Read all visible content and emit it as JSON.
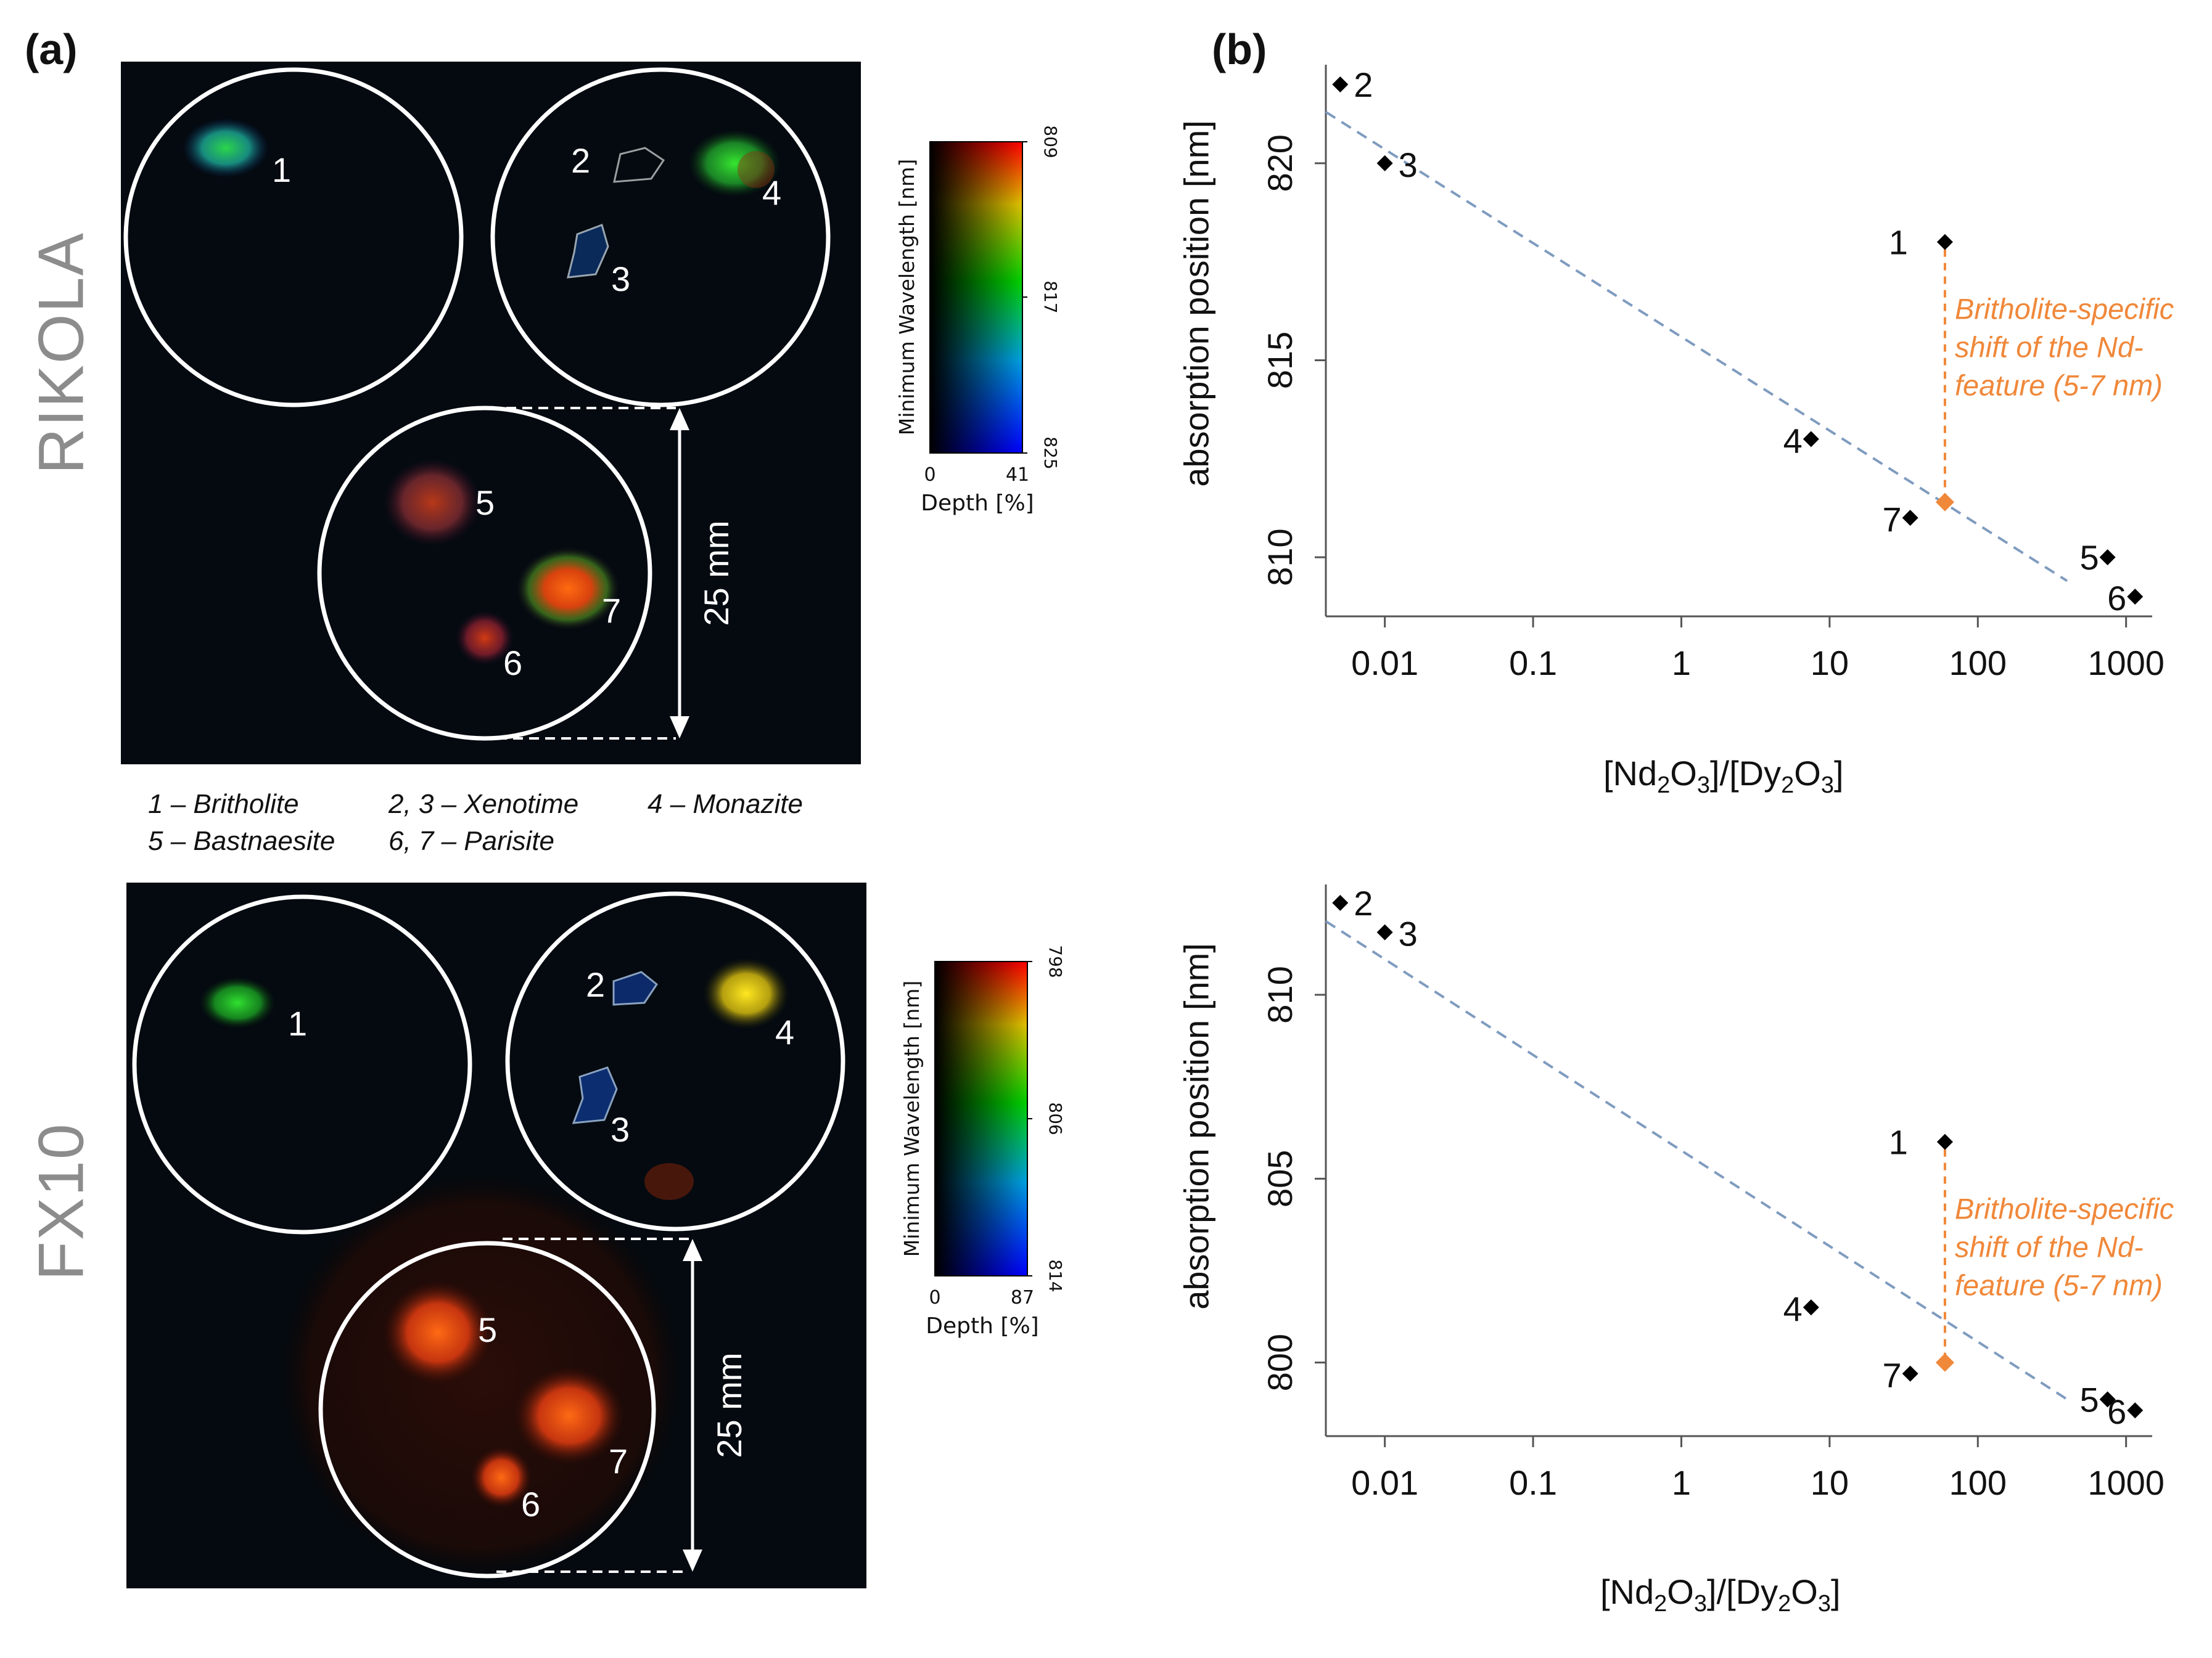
{
  "panels": {
    "a_label": "(a)",
    "b_label": "(b)"
  },
  "sensors": [
    {
      "name": "RIKOLA",
      "scale_text": "25 mm",
      "colorbar": {
        "title": "Minimum Wavelength [nm]",
        "top_tick": "809",
        "mid_tick": "817",
        "bottom_tick": "825",
        "depth_label": "Depth [%]",
        "depth_min": "0",
        "depth_max": "41"
      },
      "circle_labels": [
        "1",
        "2",
        "3",
        "4",
        "5",
        "6",
        "7"
      ]
    },
    {
      "name": "FX10",
      "scale_text": "25 mm",
      "colorbar": {
        "title": "Minimum Wavelength [nm]",
        "top_tick": "798",
        "mid_tick": "806",
        "bottom_tick": "814",
        "depth_label": "Depth [%]",
        "depth_min": "0",
        "depth_max": "87"
      },
      "circle_labels": [
        "1",
        "2",
        "3",
        "4",
        "5",
        "6",
        "7"
      ]
    }
  ],
  "mineral_legend": {
    "line1": [
      "1 – Britholite",
      "2, 3 – Xenotime",
      "4 – Monazite"
    ],
    "line2": [
      "5 – Bastnaesite",
      "6, 7 – Parisite"
    ]
  },
  "colors": {
    "points": "#000000",
    "trend": "#7f9bbf",
    "highlight": "#f0883a",
    "circle": "#ffffff",
    "image_bg": "#040a10"
  },
  "chart_data": [
    {
      "type": "scatter",
      "title": "RIKOLA",
      "xlabel": "[Nd2O3]/[Dy2O3]",
      "ylabel": "absorption position [nm]",
      "xscale": "log",
      "xlim": [
        0.004,
        1500
      ],
      "ylim": [
        808.5,
        822.5
      ],
      "xticks": [
        "0.01",
        "0.1",
        "1",
        "10",
        "100",
        "1000"
      ],
      "xtick_values": [
        0.01,
        0.1,
        1,
        10,
        100,
        1000
      ],
      "yticks": [
        "810",
        "815",
        "820"
      ],
      "ytick_values": [
        810,
        815,
        820
      ],
      "points": [
        {
          "label": "1",
          "x": 60,
          "y": 818.0
        },
        {
          "label": "2",
          "x": 0.005,
          "y": 822.0
        },
        {
          "label": "3",
          "x": 0.01,
          "y": 820.0
        },
        {
          "label": "4",
          "x": 7.5,
          "y": 813.0
        },
        {
          "label": "5",
          "x": 750,
          "y": 810.0
        },
        {
          "label": "6",
          "x": 1150,
          "y": 809.0
        },
        {
          "label": "7",
          "x": 35,
          "y": 811.0
        }
      ],
      "trend_line": {
        "x": [
          0.004,
          400
        ],
        "y": [
          821.3,
          809.4
        ]
      },
      "projected_point": {
        "x": 60,
        "y": 811.4
      },
      "annotation": [
        "Britholite-specific",
        "shift of the Nd-",
        "feature (5-7 nm)"
      ]
    },
    {
      "type": "scatter",
      "title": "FX10",
      "xlabel": "[Nd2O3]/[Dy2O3]",
      "ylabel": "absorption position [nm]",
      "xscale": "log",
      "xlim": [
        0.004,
        1500
      ],
      "ylim": [
        798.0,
        813.0
      ],
      "xticks": [
        "0.01",
        "0.1",
        "1",
        "10",
        "100",
        "1000"
      ],
      "xtick_values": [
        0.01,
        0.1,
        1,
        10,
        100,
        1000
      ],
      "yticks": [
        "800",
        "805",
        "810"
      ],
      "ytick_values": [
        800,
        805,
        810
      ],
      "points": [
        {
          "label": "1",
          "x": 60,
          "y": 806.0
        },
        {
          "label": "2",
          "x": 0.005,
          "y": 812.5
        },
        {
          "label": "3",
          "x": 0.01,
          "y": 811.7
        },
        {
          "label": "4",
          "x": 7.5,
          "y": 801.5
        },
        {
          "label": "5",
          "x": 750,
          "y": 799.0
        },
        {
          "label": "6",
          "x": 1150,
          "y": 798.7
        },
        {
          "label": "7",
          "x": 35,
          "y": 799.7
        }
      ],
      "trend_line": {
        "x": [
          0.004,
          400
        ],
        "y": [
          812.0,
          799.0
        ]
      },
      "projected_point": {
        "x": 60,
        "y": 800.0
      },
      "annotation": [
        "Britholite-specific",
        "shift of the Nd-",
        "feature (5-7 nm)"
      ]
    }
  ]
}
